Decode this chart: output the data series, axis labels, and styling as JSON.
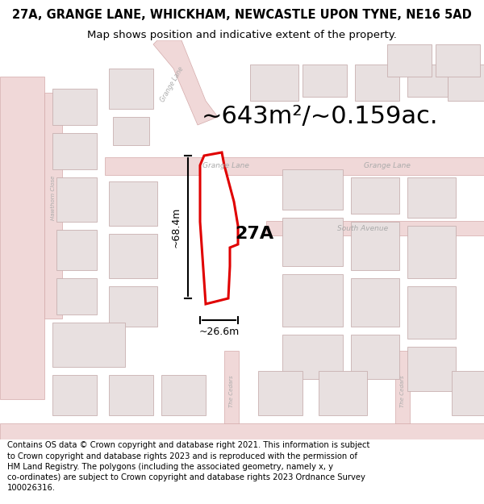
{
  "title": "27A, GRANGE LANE, WHICKHAM, NEWCASTLE UPON TYNE, NE16 5AD",
  "subtitle": "Map shows position and indicative extent of the property.",
  "area_label": "~643m²/~0.159ac.",
  "property_label": "27A",
  "dim_height": "~68.4m",
  "dim_width": "~26.6m",
  "footer": "Contains OS data © Crown copyright and database right 2021. This information is subject\nto Crown copyright and database rights 2023 and is reproduced with the permission of\nHM Land Registry. The polygons (including the associated geometry, namely x, y\nco-ordinates) are subject to Crown copyright and database rights 2023 Ordnance Survey\n100026316.",
  "bg_color": "#ffffff",
  "map_bg": "#f5eeee",
  "road_color_light": "#f0d8d8",
  "road_stroke": "#d4aaaa",
  "building_fill": "#e8e0e0",
  "building_stroke": "#c8b0b0",
  "highlight_color": "#e00000",
  "highlight_fill": "#ffffff",
  "title_fontsize": 10.5,
  "subtitle_fontsize": 9.5,
  "area_fontsize": 22,
  "label_fontsize": 16,
  "dim_fontsize": 9,
  "road_label_fontsize": 6.5,
  "footer_fontsize": 7.2
}
